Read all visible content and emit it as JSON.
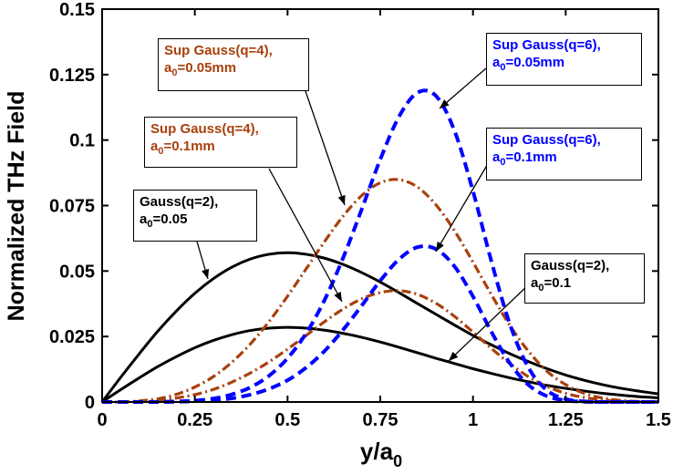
{
  "chart_data": {
    "type": "line",
    "title": "",
    "xlabel": "y/a",
    "xlabel_sub": "0",
    "ylabel": "Normalized THz Field",
    "xlim": [
      0,
      1.5
    ],
    "ylim": [
      0,
      0.15
    ],
    "grid": false,
    "xticks": [
      "0",
      "0.25",
      "0.5",
      "0.75",
      "1",
      "1.25",
      "1.5"
    ],
    "yticks": [
      "0",
      "0.025",
      "0.05",
      "0.075",
      "0.1",
      "0.125",
      "0.15"
    ],
    "x": [
      0,
      0.05,
      0.1,
      0.15,
      0.2,
      0.25,
      0.3,
      0.35,
      0.4,
      0.45,
      0.5,
      0.55,
      0.6,
      0.65,
      0.7,
      0.75,
      0.8,
      0.85,
      0.9,
      0.95,
      1.0,
      1.05,
      1.1,
      1.15,
      1.2,
      1.25,
      1.3,
      1.35,
      1.4,
      1.45,
      1.5
    ],
    "series": [
      {
        "key": "gauss_005",
        "color": "#000000",
        "style": "solid",
        "values": [
          0,
          0.0094,
          0.0184,
          0.027,
          0.0347,
          0.0415,
          0.0471,
          0.0515,
          0.0546,
          0.0564,
          0.057,
          0.0564,
          0.0549,
          0.0525,
          0.0494,
          0.0458,
          0.0418,
          0.0376,
          0.0335,
          0.0294,
          0.0254,
          0.0218,
          0.0184,
          0.0154,
          0.0127,
          0.0103,
          0.0083,
          0.0066,
          0.0052,
          0.0041,
          0.0031
        ]
      },
      {
        "key": "gauss_01",
        "color": "#000000",
        "style": "solid",
        "values": [
          0,
          0.0047,
          0.0092,
          0.0135,
          0.0173,
          0.0207,
          0.0235,
          0.0257,
          0.0273,
          0.0282,
          0.0285,
          0.0282,
          0.0274,
          0.0262,
          0.0247,
          0.0229,
          0.0209,
          0.0188,
          0.0167,
          0.0147,
          0.0127,
          0.0109,
          0.0092,
          0.0077,
          0.0063,
          0.0052,
          0.0042,
          0.0033,
          0.0026,
          0.002,
          0.0016
        ]
      },
      {
        "key": "sup4_005",
        "color": "#a8400c",
        "style": "dashdot",
        "values": [
          0,
          0.0,
          0.0004,
          0.0012,
          0.0029,
          0.0057,
          0.0097,
          0.0152,
          0.0222,
          0.0307,
          0.0404,
          0.0508,
          0.0613,
          0.071,
          0.0788,
          0.0837,
          0.0849,
          0.0821,
          0.0753,
          0.0654,
          0.0534,
          0.0409,
          0.0291,
          0.0193,
          0.0117,
          0.0066,
          0.0033,
          0.0015,
          0.0006,
          0.0002,
          0.0001
        ]
      },
      {
        "key": "sup4_01",
        "color": "#a8400c",
        "style": "dashdot",
        "values": [
          0,
          0.0,
          0.0002,
          0.0006,
          0.0015,
          0.0028,
          0.0048,
          0.0076,
          0.0111,
          0.0153,
          0.0202,
          0.0254,
          0.0307,
          0.0355,
          0.0394,
          0.0418,
          0.0425,
          0.0411,
          0.0377,
          0.0327,
          0.0267,
          0.0204,
          0.0146,
          0.0096,
          0.0059,
          0.0033,
          0.0017,
          0.0008,
          0.0003,
          0.0001,
          0.0
        ]
      },
      {
        "key": "sup6_005",
        "color": "#0000ff",
        "style": "dashed",
        "values": [
          0,
          0.0,
          0.0,
          0.0,
          0.0002,
          0.0005,
          0.0013,
          0.0029,
          0.0056,
          0.01,
          0.0167,
          0.0262,
          0.039,
          0.0551,
          0.0736,
          0.0926,
          0.1088,
          0.1181,
          0.1169,
          0.1036,
          0.0805,
          0.0535,
          0.0295,
          0.013,
          0.0044,
          0.0011,
          0.0002,
          0,
          0,
          0,
          0
        ]
      },
      {
        "key": "sup6_01",
        "color": "#0000ff",
        "style": "dashed",
        "values": [
          0,
          0.0,
          0.0,
          0.0,
          0.0001,
          0.0003,
          0.0007,
          0.0014,
          0.0028,
          0.005,
          0.0083,
          0.0131,
          0.0195,
          0.0276,
          0.0368,
          0.0463,
          0.0544,
          0.0591,
          0.0584,
          0.0518,
          0.0403,
          0.0267,
          0.0147,
          0.0065,
          0.0022,
          0.0006,
          0.0001,
          0,
          0,
          0,
          0
        ]
      }
    ],
    "annotations": [
      {
        "key": "a1",
        "line1": "Sup Gauss(q=4),",
        "line2_pre": "a",
        "line2_sub": "0",
        "line2_post": "=0.05mm",
        "color": "#a8400c"
      },
      {
        "key": "a2",
        "line1": "Sup Gauss(q=6),",
        "line2_pre": "a",
        "line2_sub": "0",
        "line2_post": "=0.05mm",
        "color": "#0000ff"
      },
      {
        "key": "a3",
        "line1": "Sup Gauss(q=4),",
        "line2_pre": "a",
        "line2_sub": "0",
        "line2_post": "=0.1mm",
        "color": "#a8400c"
      },
      {
        "key": "a4",
        "line1": "Sup Gauss(q=6),",
        "line2_pre": "a",
        "line2_sub": "0",
        "line2_post": "=0.1mm",
        "color": "#0000ff"
      },
      {
        "key": "a5",
        "line1": "Gauss(q=2),",
        "line2_pre": "a",
        "line2_sub": "0",
        "line2_post": "=0.05",
        "color": "#000000"
      },
      {
        "key": "a6",
        "line1": "Gauss(q=2),",
        "line2_pre": "a",
        "line2_sub": "0",
        "line2_post": "=0.1",
        "color": "#000000"
      }
    ]
  }
}
